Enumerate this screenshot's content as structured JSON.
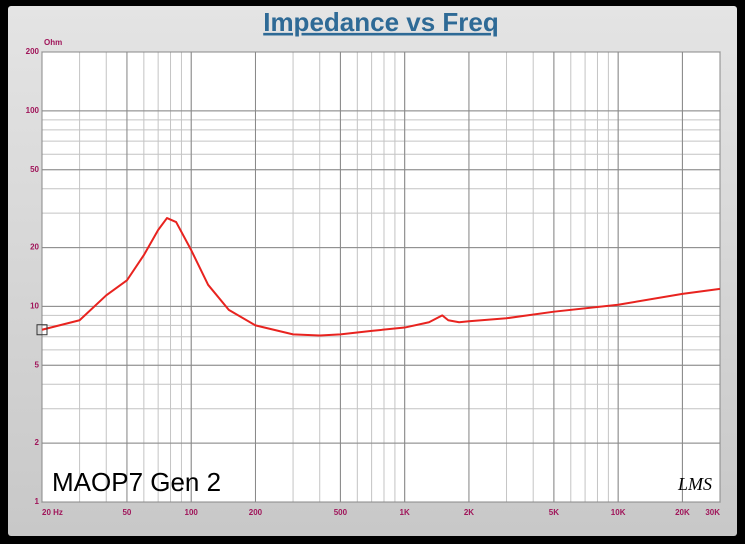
{
  "chart_data": {
    "type": "line",
    "title": "Impedance vs Freq",
    "y_unit": "Ohm",
    "annotation": "MAOP7 Gen 2",
    "logo": "LMS",
    "x": [
      20,
      30,
      40,
      50,
      60,
      70,
      77,
      85,
      100,
      120,
      150,
      200,
      300,
      400,
      500,
      700,
      1000,
      1300,
      1500,
      1600,
      1800,
      2000,
      3000,
      5000,
      10000,
      20000,
      30000
    ],
    "values": [
      7.6,
      8.5,
      11.4,
      13.6,
      18.3,
      24.6,
      28.3,
      27,
      19.4,
      12.9,
      9.6,
      8.0,
      7.2,
      7.1,
      7.2,
      7.5,
      7.8,
      8.3,
      9.0,
      8.5,
      8.3,
      8.4,
      8.7,
      9.4,
      10.2,
      11.6,
      12.3
    ],
    "color": "#e8231f",
    "xlog": true,
    "ylog": true,
    "xlim": [
      20,
      30000
    ],
    "ylim": [
      1,
      200
    ],
    "xticks": [
      {
        "value": 20,
        "label": "20 Hz"
      },
      50,
      100,
      200,
      500,
      {
        "value": 1000,
        "label": "1K"
      },
      {
        "value": 2000,
        "label": "2K"
      },
      {
        "value": 5000,
        "label": "5K"
      },
      {
        "value": 10000,
        "label": "10K"
      },
      {
        "value": 20000,
        "label": "20K"
      },
      {
        "value": 30000,
        "label": "30K"
      }
    ],
    "yticks": [
      1,
      2,
      5,
      10,
      20,
      50,
      100,
      200
    ],
    "grid": true
  }
}
